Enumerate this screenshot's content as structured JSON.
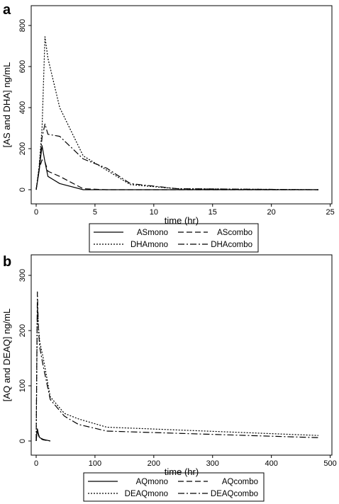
{
  "chart_data": [
    {
      "type": "line",
      "panel_label": "a",
      "xlabel": "time (hr)",
      "ylabel": "[AS and DHA] ng/mL",
      "xlim": [
        0,
        24
      ],
      "ylim": [
        0,
        800
      ],
      "xticks": [
        0,
        5,
        10,
        15,
        20,
        25
      ],
      "yticks": [
        0,
        200,
        400,
        600,
        800
      ],
      "legend_position": "below",
      "series": [
        {
          "name": "ASmono",
          "dash": "solid",
          "x": [
            0,
            0.25,
            0.5,
            0.75,
            1,
            2,
            4,
            6,
            8,
            12,
            24
          ],
          "y": [
            0,
            90,
            215,
            135,
            65,
            30,
            0,
            0,
            0,
            0,
            0
          ]
        },
        {
          "name": "AScombo",
          "dash": "dashed",
          "x": [
            0,
            0.25,
            0.5,
            0.75,
            1,
            2,
            4,
            6,
            8,
            12,
            24
          ],
          "y": [
            0,
            100,
            145,
            135,
            90,
            65,
            5,
            0,
            0,
            0,
            0
          ]
        },
        {
          "name": "DHAmono",
          "dash": "dotted",
          "x": [
            0,
            0.25,
            0.5,
            0.75,
            1,
            2,
            4,
            6,
            8,
            12,
            24
          ],
          "y": [
            0,
            110,
            300,
            745,
            640,
            400,
            165,
            95,
            25,
            5,
            0
          ]
        },
        {
          "name": "DHAcombo",
          "dash": "dashdot",
          "x": [
            0,
            0.25,
            0.5,
            0.75,
            1,
            2,
            4,
            6,
            8,
            12,
            24
          ],
          "y": [
            0,
            100,
            255,
            320,
            270,
            260,
            150,
            105,
            30,
            5,
            0
          ]
        }
      ]
    },
    {
      "type": "line",
      "panel_label": "b",
      "xlabel": "time (hr)",
      "ylabel": "[AQ and DEAQ] ng/mL",
      "xlim": [
        0,
        480
      ],
      "ylim": [
        0,
        300
      ],
      "xticks": [
        0,
        100,
        200,
        300,
        400,
        500
      ],
      "yticks": [
        0,
        100,
        200,
        300
      ],
      "legend_position": "below",
      "series": [
        {
          "name": "AQmono",
          "dash": "solid",
          "x": [
            0,
            1,
            2,
            4,
            6,
            12,
            24
          ],
          "y": [
            0,
            15,
            22,
            12,
            6,
            3,
            0
          ]
        },
        {
          "name": "AQcombo",
          "dash": "dashed",
          "x": [
            0,
            1,
            2,
            4,
            6,
            12,
            24
          ],
          "y": [
            0,
            10,
            16,
            10,
            5,
            2,
            0
          ]
        },
        {
          "name": "DEAQmono",
          "dash": "dotted",
          "x": [
            0,
            1,
            2,
            4,
            6,
            12,
            24,
            48,
            72,
            120,
            480
          ],
          "y": [
            0,
            120,
            250,
            205,
            180,
            150,
            80,
            50,
            40,
            25,
            10
          ]
        },
        {
          "name": "DEAQcombo",
          "dash": "dashdot",
          "x": [
            0,
            1,
            2,
            4,
            6,
            12,
            24,
            48,
            72,
            120,
            480
          ],
          "y": [
            0,
            130,
            270,
            200,
            170,
            135,
            75,
            45,
            30,
            18,
            6
          ]
        }
      ]
    }
  ]
}
